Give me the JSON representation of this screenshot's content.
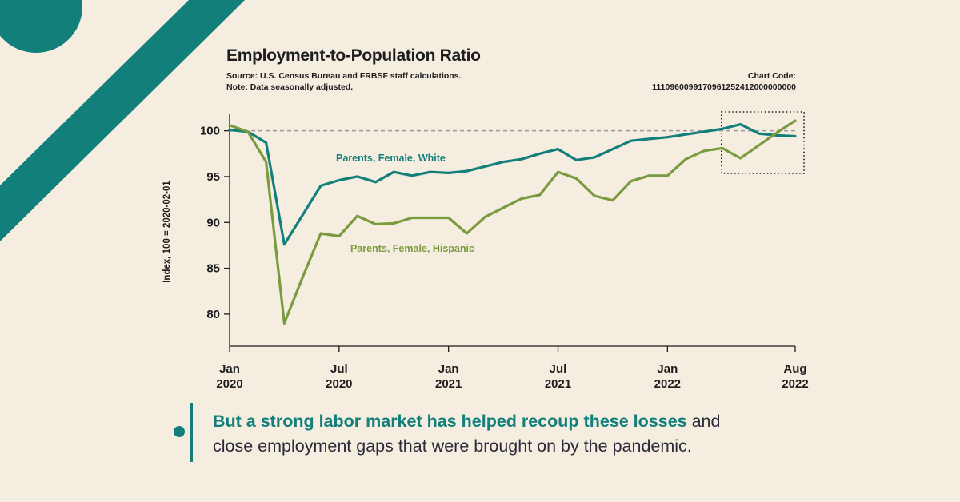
{
  "colors": {
    "background": "#f4ede0",
    "teal": "#127f7b",
    "green": "#7a9a3e",
    "text": "#1d1d1d"
  },
  "caption": {
    "highlight": "But a strong labor market has helped recoup these losses",
    "rest_1": " and",
    "rest_2": "close employment gaps that were brought on by the pandemic."
  },
  "chart_data": {
    "type": "line",
    "title": "Employment-to-Population Ratio",
    "source": "Source: U.S. Census Bureau and FRBSF staff calculations.",
    "note": "Note: Data seasonally adjusted.",
    "chart_code_label": "Chart Code:",
    "chart_code": "1110960099170961252412000000000",
    "ylabel": "Index, 100 = 2020-02-01",
    "ylim": [
      76.5,
      101.8
    ],
    "yticks": [
      80,
      85,
      90,
      95,
      100
    ],
    "reference_line": 100,
    "highlight_box": [
      "2022-04",
      "2022-08"
    ],
    "x_ticks": [
      {
        "month": 0,
        "line1": "Jan",
        "line2": "2020"
      },
      {
        "month": 6,
        "line1": "Jul",
        "line2": "2020"
      },
      {
        "month": 12,
        "line1": "Jan",
        "line2": "2021"
      },
      {
        "month": 18,
        "line1": "Jul",
        "line2": "2021"
      },
      {
        "month": 24,
        "line1": "Jan",
        "line2": "2022"
      },
      {
        "month": 31,
        "line1": "Aug",
        "line2": "2022"
      }
    ],
    "x": [
      "2020-01",
      "2020-02",
      "2020-03",
      "2020-04",
      "2020-05",
      "2020-06",
      "2020-07",
      "2020-08",
      "2020-09",
      "2020-10",
      "2020-11",
      "2020-12",
      "2021-01",
      "2021-02",
      "2021-03",
      "2021-04",
      "2021-05",
      "2021-06",
      "2021-07",
      "2021-08",
      "2021-09",
      "2021-10",
      "2021-11",
      "2021-12",
      "2022-01",
      "2022-02",
      "2022-03",
      "2022-04",
      "2022-05",
      "2022-06",
      "2022-07",
      "2022-08"
    ],
    "series": [
      {
        "name": "Parents, Female, White",
        "color": "#127f7b",
        "values": [
          100.1,
          99.9,
          98.7,
          87.6,
          90.8,
          94.0,
          94.6,
          95.0,
          94.4,
          95.5,
          95.1,
          95.5,
          95.4,
          95.6,
          96.1,
          96.6,
          96.9,
          97.5,
          98.0,
          96.8,
          97.1,
          98.0,
          98.9,
          99.1,
          99.3,
          99.6,
          99.9,
          100.2,
          100.7,
          99.7,
          99.5,
          99.4
        ]
      },
      {
        "name": "Parents, Female, Hispanic",
        "color": "#7a9a3e",
        "values": [
          100.6,
          99.9,
          96.6,
          79.0,
          84.0,
          88.8,
          88.5,
          90.7,
          89.8,
          89.9,
          90.5,
          90.5,
          90.5,
          88.8,
          90.6,
          91.6,
          92.6,
          93.0,
          95.5,
          94.8,
          92.9,
          92.4,
          94.5,
          95.1,
          95.1,
          96.9,
          97.8,
          98.1,
          97.0,
          98.4,
          99.8,
          101.1
        ]
      }
    ]
  }
}
